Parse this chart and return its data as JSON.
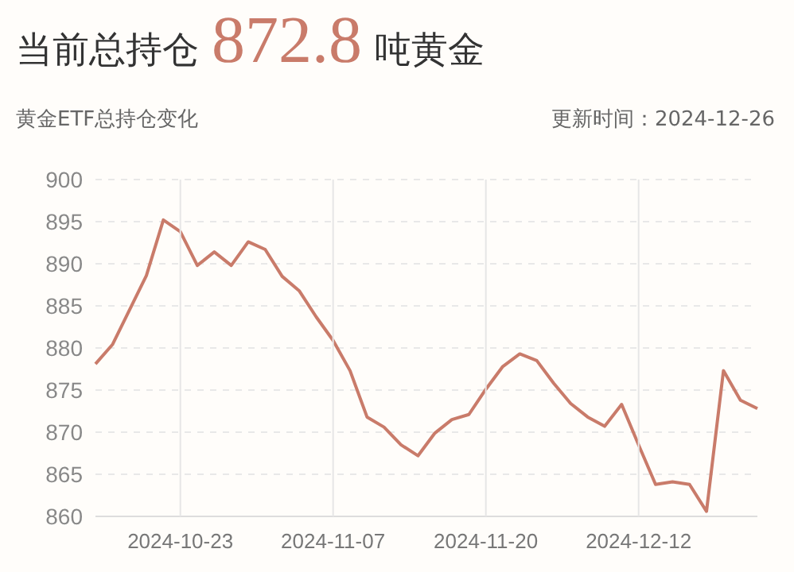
{
  "chart_data": {
    "type": "line",
    "title": "当前总持仓 872.8 吨黄金",
    "subtitle": "黄金ETF总持仓变化",
    "annotations": [
      "更新时间：2024-12-26"
    ],
    "categories": [
      null,
      null,
      null,
      null,
      null,
      "2024-10-23",
      null,
      null,
      null,
      null,
      null,
      null,
      null,
      null,
      "2024-11-07",
      null,
      null,
      null,
      null,
      null,
      null,
      null,
      null,
      "2024-11-20",
      null,
      null,
      null,
      null,
      null,
      null,
      null,
      null,
      "2024-12-12",
      null,
      null,
      null,
      null,
      null,
      null,
      null
    ],
    "series": [
      {
        "color": "#c97b6a",
        "values": [
          878.1,
          880.4,
          884.5,
          888.6,
          895.2,
          893.8,
          889.8,
          891.4,
          889.8,
          892.6,
          891.7,
          888.5,
          886.8,
          883.7,
          880.9,
          877.3,
          871.8,
          870.6,
          868.5,
          867.2,
          869.9,
          871.5,
          872.1,
          875.1,
          877.8,
          879.3,
          878.5,
          875.8,
          873.4,
          871.8,
          870.7,
          873.3,
          868.5,
          863.8,
          864.1,
          863.8,
          860.6,
          877.3,
          873.8,
          872.8
        ]
      }
    ],
    "ylim": [
      860,
      900
    ],
    "yticks": [
      860,
      865,
      870,
      875,
      880,
      885,
      890,
      895,
      900
    ],
    "grid": true,
    "line_style": "solid"
  }
}
